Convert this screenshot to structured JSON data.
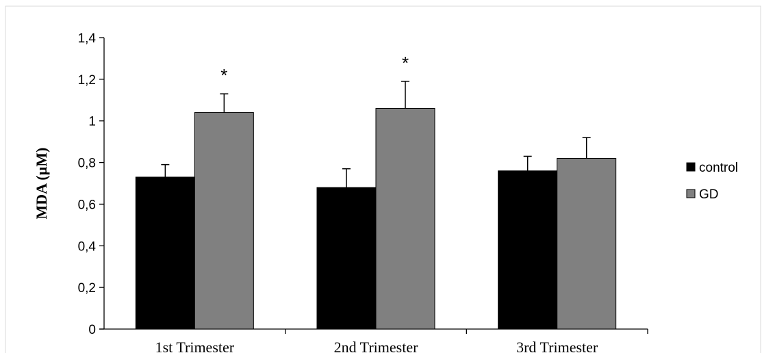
{
  "chart_data": {
    "type": "bar",
    "title": "",
    "xlabel": "",
    "ylabel": "MDA (µM)",
    "ylim": [
      0,
      1.4
    ],
    "yticks": [
      "0",
      "0,2",
      "0,4",
      "0,6",
      "0,8",
      "1",
      "1,2",
      "1,4"
    ],
    "ytick_values": [
      0,
      0.2,
      0.4,
      0.6,
      0.8,
      1.0,
      1.2,
      1.4
    ],
    "categories": [
      "1st Trimester",
      "2nd Trimester",
      "3rd Trimester"
    ],
    "series": [
      {
        "name": "control",
        "values": [
          0.73,
          0.68,
          0.76
        ],
        "errors": [
          0.06,
          0.09,
          0.07
        ],
        "color": "#000000"
      },
      {
        "name": "GD",
        "values": [
          1.04,
          1.06,
          0.82
        ],
        "errors": [
          0.09,
          0.13,
          0.1
        ],
        "color": "#808080"
      }
    ],
    "annotations": [
      {
        "category": "1st Trimester",
        "series": "GD",
        "text": "*"
      },
      {
        "category": "2nd Trimester",
        "series": "GD",
        "text": "*"
      }
    ],
    "legend": "right",
    "grid": false,
    "frame_color": "#d9d9d9"
  }
}
